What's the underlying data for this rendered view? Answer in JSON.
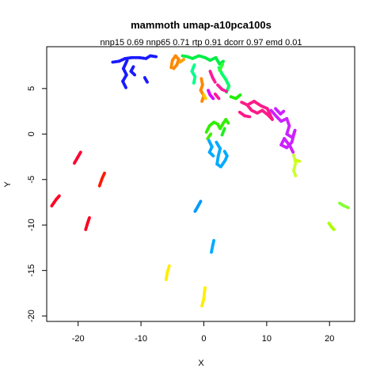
{
  "chart_data": {
    "type": "scatter",
    "title": "mammoth umap-a10pca100s",
    "subtitle": "nnp15 0.69 nnp65 0.71 rtp 0.91 dcorr 0.97 emd 0.01",
    "xlabel": "X",
    "ylabel": "Y",
    "xlim": [
      -25,
      24
    ],
    "ylim": [
      -20.6,
      9.6
    ],
    "x_ticks": [
      -20,
      -10,
      0,
      10,
      20
    ],
    "y_ticks": [
      -20,
      -15,
      -10,
      -5,
      0,
      5
    ],
    "grid": false,
    "legend": "none",
    "strokes": [
      {
        "color": "#ff0022",
        "points": [
          [
            -24.2,
            -7.9
          ],
          [
            -23.5,
            -7.2
          ],
          [
            -23.0,
            -6.8
          ]
        ]
      },
      {
        "color": "#ff0033",
        "points": [
          [
            -20.6,
            -3.2
          ],
          [
            -20.1,
            -2.6
          ],
          [
            -19.6,
            -2.0
          ]
        ]
      },
      {
        "color": "#ff0022",
        "points": [
          [
            -18.8,
            -10.5
          ],
          [
            -18.5,
            -9.8
          ],
          [
            -18.2,
            -9.2
          ]
        ]
      },
      {
        "color": "#ff1a00",
        "points": [
          [
            -16.6,
            -5.7
          ],
          [
            -16.2,
            -4.9
          ],
          [
            -15.8,
            -4.3
          ]
        ]
      },
      {
        "color": "#1a1aff",
        "points": [
          [
            -14.5,
            7.9
          ],
          [
            -13.5,
            8.0
          ],
          [
            -12.5,
            8.3
          ],
          [
            -11.5,
            8.4
          ],
          [
            -10.3,
            8.4
          ],
          [
            -9.2,
            8.3
          ],
          [
            -8.5,
            8.6
          ],
          [
            -7.6,
            8.5
          ]
        ]
      },
      {
        "color": "#1a1aff",
        "points": [
          [
            -12.2,
            8.1
          ],
          [
            -12.8,
            7.2
          ],
          [
            -12.3,
            6.5
          ],
          [
            -12.9,
            5.8
          ],
          [
            -12.4,
            5.1
          ]
        ]
      },
      {
        "color": "#1a1aff",
        "points": [
          [
            -11.2,
            7.4
          ],
          [
            -11.6,
            6.9
          ],
          [
            -11.0,
            6.5
          ]
        ]
      },
      {
        "color": "#1a1aff",
        "points": [
          [
            -9.4,
            6.2
          ],
          [
            -9.0,
            5.7
          ]
        ]
      },
      {
        "color": "#ff8800",
        "points": [
          [
            -5.2,
            7.3
          ],
          [
            -5.0,
            8.1
          ],
          [
            -4.5,
            8.6
          ],
          [
            -4.0,
            8.2
          ],
          [
            -4.3,
            7.6
          ],
          [
            -4.8,
            7.2
          ]
        ]
      },
      {
        "color": "#ffa000",
        "points": [
          [
            -3.8,
            7.9
          ],
          [
            -3.2,
            8.2
          ]
        ]
      },
      {
        "color": "#00ee44",
        "points": [
          [
            -3.4,
            8.6
          ],
          [
            -2.6,
            8.5
          ],
          [
            -1.8,
            8.3
          ],
          [
            -0.8,
            8.6
          ],
          [
            0.2,
            8.4
          ],
          [
            1.0,
            8.1
          ],
          [
            1.9,
            8.4
          ],
          [
            2.5,
            7.7
          ],
          [
            3.1,
            8.0
          ]
        ]
      },
      {
        "color": "#00ff88",
        "points": [
          [
            -1.5,
            7.6
          ],
          [
            -1.9,
            6.9
          ],
          [
            -1.4,
            6.3
          ],
          [
            -1.6,
            5.6
          ]
        ]
      },
      {
        "color": "#00ff66",
        "points": [
          [
            2.4,
            7.3
          ],
          [
            2.9,
            6.6
          ],
          [
            3.5,
            6.0
          ],
          [
            4.0,
            5.3
          ],
          [
            3.6,
            4.6
          ]
        ]
      },
      {
        "color": "#33ff33",
        "points": [
          [
            3.0,
            7.7
          ],
          [
            2.5,
            7.0
          ]
        ]
      },
      {
        "color": "#ff1a99",
        "points": [
          [
            1.0,
            6.9
          ],
          [
            1.4,
            6.2
          ],
          [
            1.8,
            5.7
          ]
        ]
      },
      {
        "color": "#ff8800",
        "points": [
          [
            -0.4,
            6.1
          ],
          [
            -0.2,
            5.4
          ],
          [
            -0.5,
            4.8
          ],
          [
            0.0,
            4.2
          ],
          [
            -0.3,
            3.6
          ]
        ]
      },
      {
        "color": "#ffcc00",
        "points": [
          [
            0.0,
            4.3
          ],
          [
            0.3,
            3.9
          ]
        ]
      },
      {
        "color": "#dd00ff",
        "points": [
          [
            0.7,
            4.8
          ],
          [
            1.0,
            4.3
          ],
          [
            1.5,
            3.9
          ]
        ]
      },
      {
        "color": "#ff1a99",
        "points": [
          [
            2.2,
            5.4
          ],
          [
            2.9,
            4.9
          ],
          [
            3.6,
            4.7
          ]
        ]
      },
      {
        "color": "#ff1a99",
        "points": [
          [
            1.8,
            4.4
          ],
          [
            2.4,
            3.9
          ]
        ]
      },
      {
        "color": "#22ee00",
        "points": [
          [
            4.3,
            4.1
          ],
          [
            5.1,
            3.9
          ],
          [
            5.8,
            4.3
          ]
        ]
      },
      {
        "color": "#ff1a88",
        "points": [
          [
            6.0,
            3.5
          ],
          [
            6.9,
            3.2
          ],
          [
            7.6,
            2.6
          ],
          [
            8.5,
            2.3
          ],
          [
            9.3,
            2.6
          ],
          [
            10.2,
            2.1
          ],
          [
            10.9,
            1.6
          ],
          [
            10.1,
            2.8
          ],
          [
            9.1,
            3.1
          ],
          [
            8.0,
            3.6
          ],
          [
            7.2,
            3.3
          ]
        ]
      },
      {
        "color": "#ff1a88",
        "points": [
          [
            5.7,
            2.4
          ],
          [
            6.5,
            2.0
          ],
          [
            7.3,
            1.9
          ]
        ]
      },
      {
        "color": "#cc22ff",
        "points": [
          [
            10.7,
            2.6
          ],
          [
            11.6,
            1.9
          ],
          [
            12.3,
            1.4
          ],
          [
            13.2,
            1.7
          ],
          [
            13.6,
            0.9
          ],
          [
            13.2,
            0.0
          ],
          [
            14.1,
            -0.4
          ],
          [
            14.5,
            0.4
          ],
          [
            14.0,
            -0.9
          ],
          [
            13.2,
            -1.5
          ],
          [
            12.3,
            -1.2
          ],
          [
            12.8,
            -0.5
          ],
          [
            13.7,
            -1.3
          ],
          [
            14.2,
            -2.0
          ]
        ]
      },
      {
        "color": "#cc22ff",
        "points": [
          [
            11.4,
            2.8
          ],
          [
            12.2,
            2.2
          ],
          [
            12.7,
            2.5
          ]
        ]
      },
      {
        "color": "#ccff33",
        "points": [
          [
            14.3,
            -2.3
          ],
          [
            14.6,
            -3.2
          ],
          [
            14.3,
            -4.0
          ],
          [
            14.6,
            -4.6
          ]
        ]
      },
      {
        "color": "#ccff00",
        "points": [
          [
            14.8,
            -2.9
          ],
          [
            15.2,
            -3.0
          ]
        ]
      },
      {
        "color": "#33ee00",
        "points": [
          [
            0.4,
            0.2
          ],
          [
            0.9,
            0.9
          ],
          [
            1.6,
            1.3
          ],
          [
            2.2,
            1.1
          ],
          [
            2.6,
            0.6
          ],
          [
            3.1,
            1.2
          ],
          [
            3.5,
            1.6
          ],
          [
            3.9,
            1.2
          ]
        ]
      },
      {
        "color": "#44ee00",
        "points": [
          [
            0.6,
            -0.5
          ],
          [
            1.1,
            0.0
          ]
        ]
      },
      {
        "color": "#22ee22",
        "points": [
          [
            2.9,
            -0.1
          ],
          [
            3.3,
            0.6
          ]
        ]
      },
      {
        "color": "#00aaff",
        "points": [
          [
            0.8,
            -0.7
          ],
          [
            1.3,
            -1.4
          ],
          [
            0.9,
            -2.0
          ],
          [
            1.5,
            -2.4
          ]
        ]
      },
      {
        "color": "#00aaff",
        "points": [
          [
            2.0,
            -0.9
          ],
          [
            2.6,
            -1.6
          ],
          [
            2.3,
            -2.4
          ],
          [
            2.1,
            -3.3
          ],
          [
            2.7,
            -3.6
          ],
          [
            3.4,
            -2.9
          ],
          [
            3.7,
            -2.4
          ],
          [
            3.3,
            -1.9
          ]
        ]
      },
      {
        "color": "#0099ff",
        "points": [
          [
            -1.4,
            -8.5
          ],
          [
            -0.9,
            -7.9
          ],
          [
            -0.5,
            -7.4
          ]
        ]
      },
      {
        "color": "#00aaff",
        "points": [
          [
            1.2,
            -13.0
          ],
          [
            1.4,
            -12.3
          ],
          [
            1.6,
            -11.7
          ]
        ]
      },
      {
        "color": "#ffee00",
        "points": [
          [
            -6.0,
            -16.0
          ],
          [
            -5.8,
            -15.2
          ],
          [
            -5.5,
            -14.5
          ]
        ]
      },
      {
        "color": "#ffee00",
        "points": [
          [
            -0.3,
            -18.9
          ],
          [
            0.0,
            -18.1
          ],
          [
            0.1,
            -17.4
          ],
          [
            0.2,
            -16.9
          ]
        ]
      },
      {
        "color": "#aaff00",
        "points": [
          [
            19.9,
            -9.8
          ],
          [
            20.3,
            -10.2
          ],
          [
            20.7,
            -10.5
          ]
        ]
      },
      {
        "color": "#88ff33",
        "points": [
          [
            21.6,
            -7.6
          ],
          [
            22.3,
            -7.9
          ],
          [
            23.0,
            -8.1
          ]
        ]
      }
    ]
  }
}
